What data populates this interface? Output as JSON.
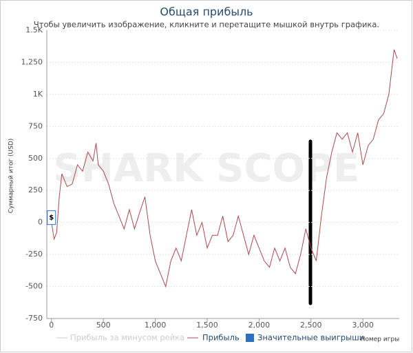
{
  "chart_data": {
    "type": "line",
    "title": "Общая прибыль",
    "subtitle": "Чтобы увеличить изображение, кликните и перетащите мышкой внутрь графика.",
    "watermark": "SHARK SCOPE",
    "y_label": "Суммарный итог (USD)",
    "x_label": "Номер игры",
    "marker_label": "$",
    "xlim": [
      -45,
      3350
    ],
    "ylim": [
      -750,
      1500
    ],
    "xticks": [
      0,
      500,
      {
        "value": 1000,
        "label": "1,000"
      },
      {
        "value": 1500,
        "label": "1,500"
      },
      {
        "value": 2000,
        "label": "2,000"
      },
      {
        "value": 2500,
        "label": "2,500"
      },
      {
        "value": 3000,
        "label": "3,000"
      }
    ],
    "yticks": [
      {
        "value": -750,
        "label": "-750"
      },
      {
        "value": -500,
        "label": "-500"
      },
      {
        "value": -250,
        "label": "-250"
      },
      0,
      250,
      500,
      750,
      {
        "value": 1000,
        "label": "1K"
      },
      {
        "value": 1250,
        "label": "1,250"
      },
      {
        "value": 1500,
        "label": "1.5K"
      }
    ],
    "grid": true,
    "x": [
      0,
      25,
      50,
      75,
      100,
      150,
      200,
      250,
      300,
      350,
      400,
      430,
      450,
      500,
      550,
      600,
      650,
      700,
      750,
      800,
      850,
      900,
      950,
      1000,
      1050,
      1100,
      1150,
      1200,
      1250,
      1300,
      1350,
      1400,
      1450,
      1500,
      1550,
      1600,
      1650,
      1700,
      1750,
      1800,
      1850,
      1900,
      1950,
      2000,
      2050,
      2100,
      2150,
      2200,
      2250,
      2300,
      2350,
      2400,
      2450,
      2500,
      2550,
      2600,
      2650,
      2700,
      2750,
      2800,
      2850,
      2900,
      2950,
      3000,
      3050,
      3100,
      3150,
      3200,
      3250,
      3300,
      3330
    ],
    "series": [
      {
        "name": "Прибыль",
        "color": "#b0474c",
        "values": [
          0,
          -130,
          -80,
          200,
          380,
          280,
          300,
          450,
          400,
          550,
          480,
          620,
          450,
          400,
          300,
          150,
          50,
          -50,
          100,
          -50,
          80,
          200,
          -100,
          -300,
          -400,
          -500,
          -300,
          -200,
          -300,
          -100,
          100,
          -100,
          0,
          -200,
          -100,
          -100,
          50,
          -150,
          -100,
          50,
          -100,
          -250,
          -100,
          -200,
          -300,
          -350,
          -200,
          -300,
          -200,
          -350,
          -400,
          -250,
          -50,
          -200,
          -300,
          50,
          350,
          550,
          700,
          650,
          700,
          550,
          700,
          450,
          600,
          650,
          800,
          850,
          1000,
          1350,
          1280
        ]
      }
    ],
    "legend_extra": [
      {
        "name": "Прибыль за минусом рейка",
        "color": "#cccccc"
      },
      {
        "name": "Значительные выигрыши",
        "color": "#2f6fbf"
      }
    ]
  }
}
